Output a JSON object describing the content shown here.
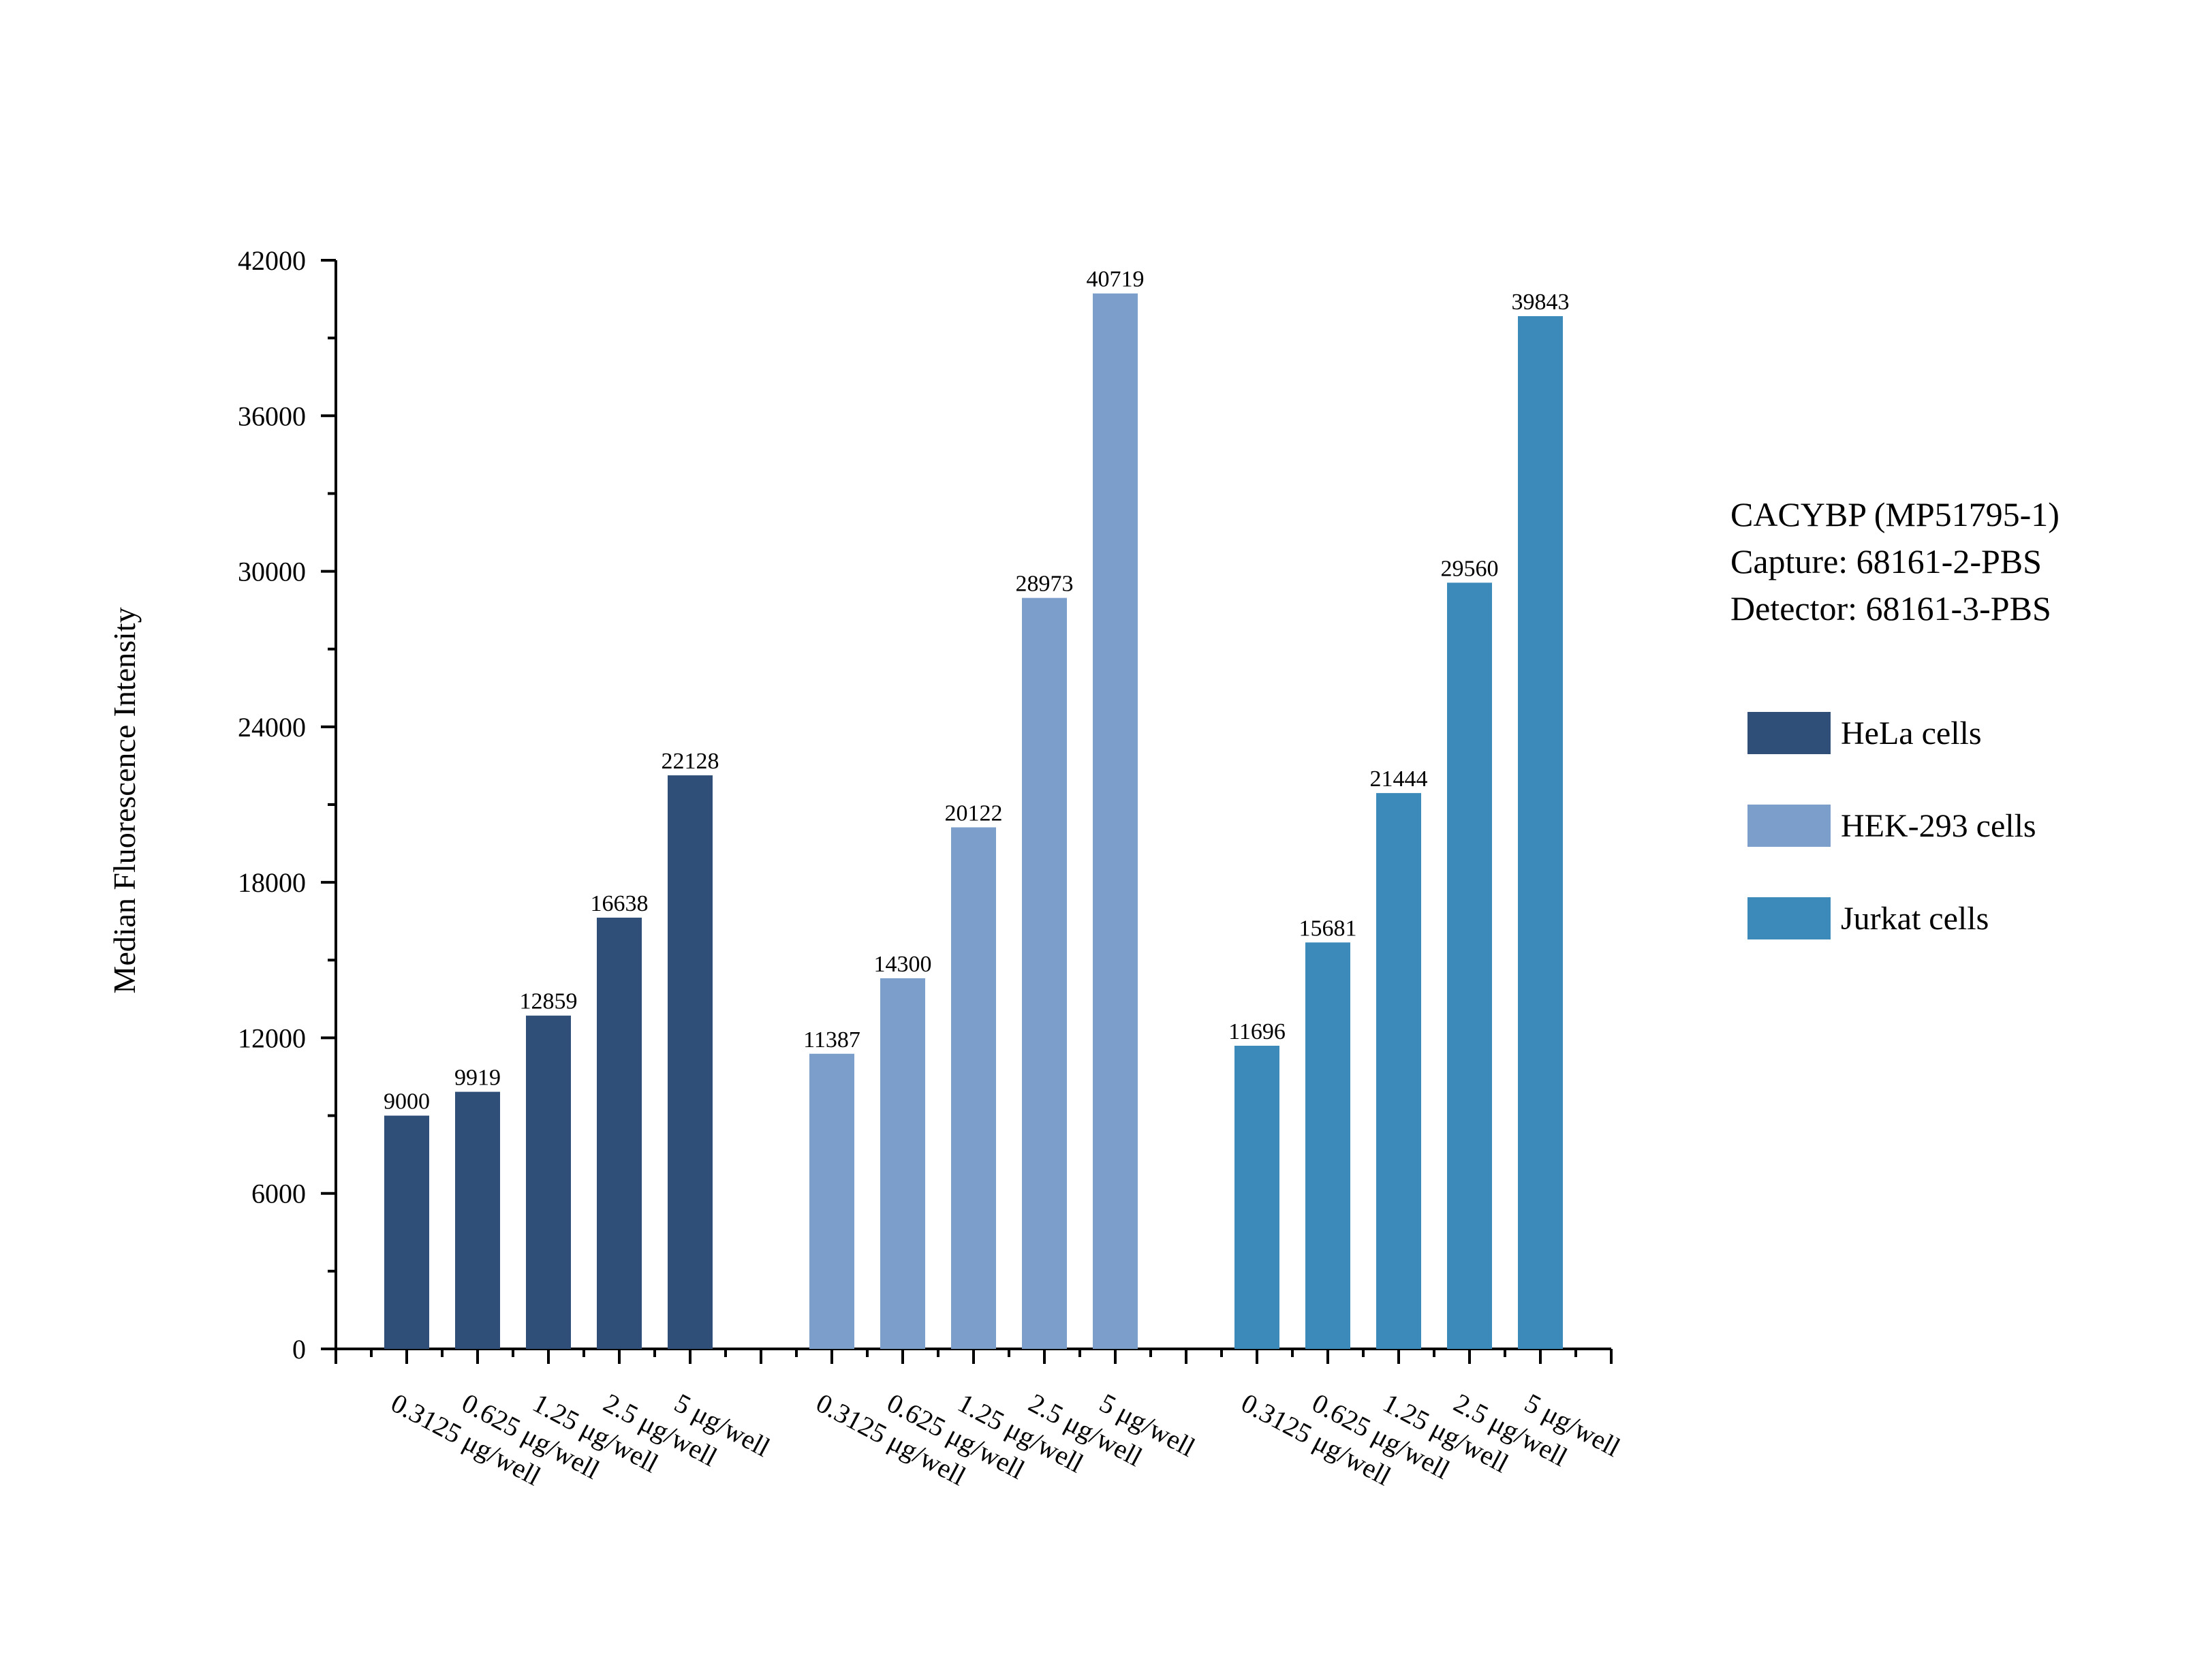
{
  "chart_data": {
    "type": "bar",
    "title": "",
    "xlabel": "",
    "ylabel": "Median Fluorescence Intensity",
    "ylim": [
      0,
      42000
    ],
    "yticks": [
      "0",
      "6000",
      "12000",
      "18000",
      "24000",
      "30000",
      "36000",
      "42000"
    ],
    "grid": false,
    "legend_position": "right",
    "info_lines": [
      "CACYBP (MP51795-1)",
      "Capture: 68161-2-PBS",
      "Detector: 68161-3-PBS"
    ],
    "categories": [
      "0.3125 μg/well",
      "0.625 μg/well",
      "1.25 μg/well",
      "2.5 μg/well",
      "5 μg/well"
    ],
    "series": [
      {
        "name": "HeLa cells",
        "color": "#2f4f78",
        "values": [
          9000,
          9919,
          12859,
          16638,
          22128
        ]
      },
      {
        "name": "HEK-293 cells",
        "color": "#7c9ecb",
        "values": [
          11387,
          14300,
          20122,
          28973,
          40719
        ]
      },
      {
        "name": "Jurkat cells",
        "color": "#3c8aba",
        "values": [
          11696,
          15681,
          21444,
          29560,
          39843
        ]
      }
    ]
  }
}
